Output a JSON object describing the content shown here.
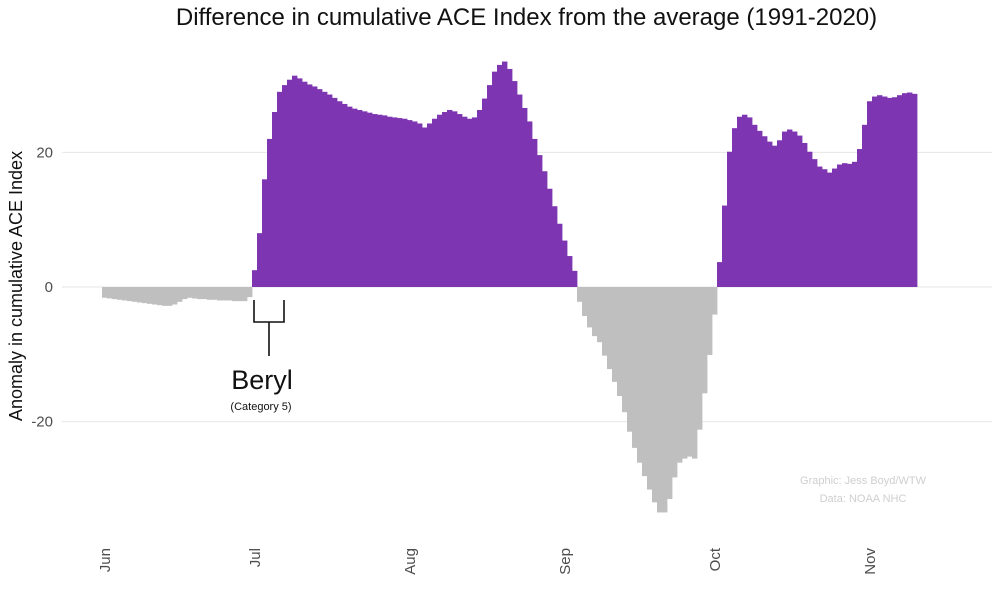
{
  "chart_data": {
    "type": "bar",
    "title": "Difference in cumulative ACE Index from the average (1991-2020)",
    "xlabel": "",
    "ylabel": "Anomaly in cumulative ACE Index",
    "ylim": [
      -37,
      37
    ],
    "yticks": [
      -20,
      0,
      20
    ],
    "x_ticks": [
      {
        "label": "Jun",
        "day": 0
      },
      {
        "label": "Jul",
        "day": 30
      },
      {
        "label": "Aug",
        "day": 61
      },
      {
        "label": "Sep",
        "day": 92
      },
      {
        "label": "Oct",
        "day": 122
      },
      {
        "label": "Nov",
        "day": 153
      }
    ],
    "start_day": 0,
    "positive_color": "#7e35b1",
    "negative_color": "#bfbfbf",
    "grid": true,
    "values": [
      -1.6,
      -1.7,
      -1.8,
      -1.9,
      -2.0,
      -2.1,
      -2.2,
      -2.3,
      -2.4,
      -2.5,
      -2.6,
      -2.7,
      -2.8,
      -2.8,
      -2.6,
      -2.2,
      -1.8,
      -1.6,
      -1.7,
      -1.8,
      -1.8,
      -1.9,
      -1.9,
      -2.0,
      -2.0,
      -2.0,
      -2.1,
      -2.1,
      -2.1,
      -1.5,
      2.5,
      8.0,
      16.0,
      22.0,
      26.0,
      29.0,
      30.0,
      30.8,
      31.4,
      31.0,
      30.5,
      30.1,
      29.8,
      29.4,
      29.0,
      28.6,
      28.1,
      27.6,
      27.2,
      26.8,
      26.5,
      26.3,
      26.1,
      25.9,
      25.7,
      25.6,
      25.5,
      25.3,
      25.2,
      25.1,
      25.0,
      24.8,
      24.6,
      24.3,
      23.7,
      24.3,
      25.0,
      25.6,
      26.0,
      26.3,
      26.1,
      25.7,
      25.3,
      25.0,
      25.2,
      26.3,
      28.0,
      30.0,
      32.0,
      33.0,
      33.5,
      32.4,
      30.6,
      28.6,
      26.6,
      24.6,
      22.0,
      19.6,
      17.2,
      14.6,
      12.0,
      9.4,
      6.9,
      4.6,
      2.4,
      -2.2,
      -4.3,
      -6.0,
      -7.3,
      -8.2,
      -10.2,
      -12.2,
      -14.1,
      -16.2,
      -18.6,
      -21.5,
      -23.9,
      -26.1,
      -28.1,
      -30.1,
      -32.0,
      -33.5,
      -33.5,
      -31.5,
      -28.3,
      -26.1,
      -25.5,
      -25.2,
      -25.5,
      -21.2,
      -15.8,
      -10.1,
      -4.1,
      3.7,
      12.1,
      20.1,
      23.6,
      25.3,
      25.6,
      25.2,
      24.1,
      23.2,
      22.4,
      21.6,
      21.0,
      21.8,
      23.1,
      23.4,
      23.1,
      22.5,
      21.4,
      20.1,
      19.0,
      17.9,
      17.5,
      17.0,
      17.6,
      18.2,
      18.4,
      18.3,
      18.6,
      20.5,
      24.1,
      27.6,
      28.3,
      28.5,
      28.3,
      28.1,
      28.2,
      28.5,
      28.8,
      28.9,
      28.7
    ],
    "annotation": {
      "name": "Beryl",
      "category": "(Category 5)",
      "start_day": 30,
      "end_day": 36
    },
    "credits": [
      "Graphic: Jess Boyd/WTW",
      "Data: NOAA NHC"
    ]
  }
}
